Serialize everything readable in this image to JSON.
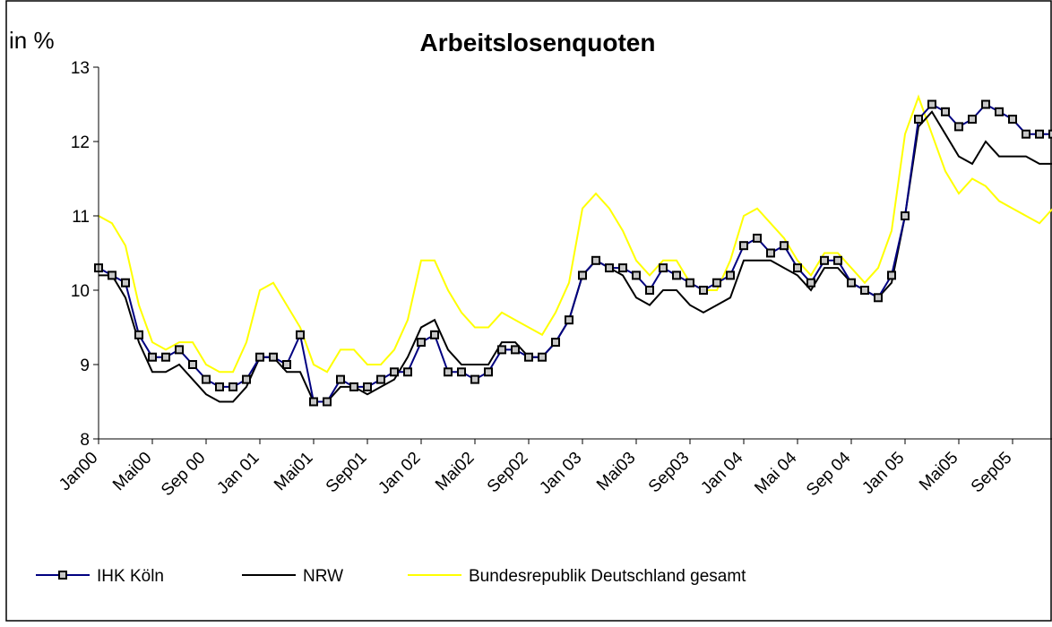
{
  "chart_data": {
    "type": "line",
    "title": "Arbeitslosenquoten",
    "ylabel": "in %",
    "categories": [
      "Jan00",
      null,
      null,
      null,
      "Mai00",
      null,
      null,
      null,
      "Sep 00",
      null,
      null,
      null,
      "Jan 01",
      null,
      null,
      null,
      "Mai01",
      null,
      null,
      null,
      "Sep01",
      null,
      null,
      null,
      "Jan 02",
      null,
      null,
      null,
      "Mai02",
      null,
      null,
      null,
      "Sep02",
      null,
      null,
      null,
      "Jan 03",
      null,
      null,
      null,
      "Mai03",
      null,
      null,
      null,
      "Sep03",
      null,
      null,
      null,
      "Jan 04",
      null,
      null,
      null,
      "Mai 04",
      null,
      null,
      null,
      "Sep 04",
      null,
      null,
      null,
      "Jan 05",
      null,
      null,
      null,
      "Mai05",
      null,
      null,
      null,
      "Sep05",
      null,
      null,
      null
    ],
    "series": [
      {
        "name": "IHK Köln",
        "color": "#000080",
        "marker": "square",
        "values": [
          10.3,
          10.2,
          10.1,
          9.4,
          9.1,
          9.1,
          9.2,
          9.0,
          8.8,
          8.7,
          8.7,
          8.8,
          9.1,
          9.1,
          9.0,
          9.4,
          8.5,
          8.5,
          8.8,
          8.7,
          8.7,
          8.8,
          8.9,
          8.9,
          9.3,
          9.4,
          8.9,
          8.9,
          8.8,
          8.9,
          9.2,
          9.2,
          9.1,
          9.1,
          9.3,
          9.6,
          10.2,
          10.4,
          10.3,
          10.3,
          10.2,
          10.0,
          10.3,
          10.2,
          10.1,
          10.0,
          10.1,
          10.2,
          10.6,
          10.7,
          10.5,
          10.6,
          10.3,
          10.1,
          10.4,
          10.4,
          10.1,
          10.0,
          9.9,
          10.2,
          11.0,
          12.3,
          12.5,
          12.4,
          12.2,
          12.3,
          12.5,
          12.4,
          12.3,
          12.1,
          12.1,
          12.1
        ]
      },
      {
        "name": "NRW",
        "color": "#000000",
        "values": [
          10.2,
          10.2,
          9.9,
          9.3,
          8.9,
          8.9,
          9.0,
          8.8,
          8.6,
          8.5,
          8.5,
          8.7,
          9.1,
          9.1,
          8.9,
          8.9,
          8.5,
          8.5,
          8.7,
          8.7,
          8.6,
          8.7,
          8.8,
          9.1,
          9.5,
          9.6,
          9.2,
          9.0,
          9.0,
          9.0,
          9.3,
          9.3,
          9.1,
          9.1,
          9.3,
          9.6,
          10.2,
          10.4,
          10.3,
          10.2,
          9.9,
          9.8,
          10.0,
          10.0,
          9.8,
          9.7,
          9.8,
          9.9,
          10.4,
          10.4,
          10.4,
          10.3,
          10.2,
          10.0,
          10.3,
          10.3,
          10.1,
          10.0,
          9.9,
          10.1,
          11.0,
          12.2,
          12.4,
          12.1,
          11.8,
          11.7,
          12.0,
          11.8,
          11.8,
          11.8,
          11.7,
          11.7
        ]
      },
      {
        "name": "Bundesrepublik Deutschland gesamt",
        "color": "#ffff00",
        "values": [
          11.0,
          10.9,
          10.6,
          9.8,
          9.3,
          9.2,
          9.3,
          9.3,
          9.0,
          8.9,
          8.9,
          9.3,
          10.0,
          10.1,
          9.8,
          9.5,
          9.0,
          8.9,
          9.2,
          9.2,
          9.0,
          9.0,
          9.2,
          9.6,
          10.4,
          10.4,
          10.0,
          9.7,
          9.5,
          9.5,
          9.7,
          9.6,
          9.5,
          9.4,
          9.7,
          10.1,
          11.1,
          11.3,
          11.1,
          10.8,
          10.4,
          10.2,
          10.4,
          10.4,
          10.1,
          10.0,
          10.0,
          10.4,
          11.0,
          11.1,
          10.9,
          10.7,
          10.4,
          10.2,
          10.5,
          10.5,
          10.3,
          10.1,
          10.3,
          10.8,
          12.1,
          12.6,
          12.1,
          11.6,
          11.3,
          11.5,
          11.4,
          11.2,
          11.1,
          11.0,
          10.9,
          11.1
        ]
      }
    ],
    "ylim": [
      8,
      13
    ],
    "yticks": [
      8,
      9,
      10,
      11,
      12,
      13
    ],
    "legend": "bottom"
  }
}
